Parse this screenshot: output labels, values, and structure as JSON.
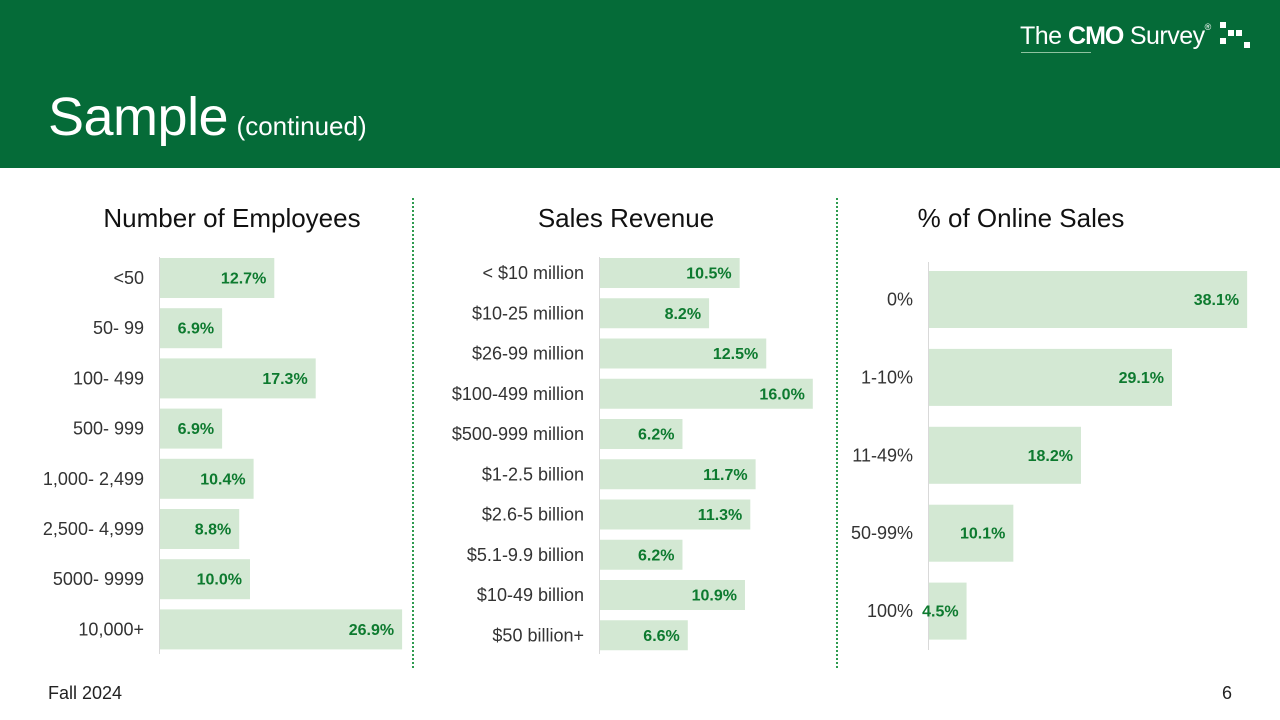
{
  "header": {
    "title": "Sample",
    "subtitle": "(continued)"
  },
  "logo": {
    "prefix": "The",
    "brand": "CMO",
    "suffix": "Survey",
    "reg": "®"
  },
  "colors": {
    "header_bg": "#056b38",
    "bar_fill": "#d3e8d3",
    "value_label": "#0d7a2f",
    "divider": "#2e9b4f"
  },
  "footer": {
    "season": "Fall 2024",
    "page_number": "6"
  },
  "chart_data": [
    {
      "type": "bar",
      "orientation": "horizontal",
      "title": "Number of Employees",
      "categories": [
        "<50",
        "50- 99",
        "100- 499",
        "500- 999",
        "1,000- 2,499",
        "2,500- 4,999",
        "5000- 9999",
        "10,000+"
      ],
      "values": [
        12.7,
        6.9,
        17.3,
        6.9,
        10.4,
        8.8,
        10.0,
        26.9
      ],
      "labels": [
        "12.7%",
        "6.9%",
        "17.3%",
        "6.9%",
        "10.4%",
        "8.8%",
        "10.0%",
        "26.9%"
      ],
      "unit": "%"
    },
    {
      "type": "bar",
      "orientation": "horizontal",
      "title": "Sales Revenue",
      "categories": [
        "< $10 million",
        "$10-25 million",
        "$26-99 million",
        "$100-499 million",
        "$500-999 million",
        "$1-2.5 billion",
        "$2.6-5 billion",
        "$5.1-9.9 billion",
        "$10-49 billion",
        "$50 billion+"
      ],
      "values": [
        10.5,
        8.2,
        12.5,
        16.0,
        6.2,
        11.7,
        11.3,
        6.2,
        10.9,
        6.6
      ],
      "labels": [
        "10.5%",
        "8.2%",
        "12.5%",
        "16.0%",
        "6.2%",
        "11.7%",
        "11.3%",
        "6.2%",
        "10.9%",
        "6.6%"
      ],
      "unit": "%"
    },
    {
      "type": "bar",
      "orientation": "horizontal",
      "title": "% of Online Sales",
      "categories": [
        "0%",
        "1-10%",
        "11-49%",
        "50-99%",
        "100%"
      ],
      "values": [
        38.1,
        29.1,
        18.2,
        10.1,
        4.5
      ],
      "labels": [
        "38.1%",
        "29.1%",
        "18.2%",
        "10.1%",
        "4.5%"
      ],
      "unit": "%"
    }
  ]
}
